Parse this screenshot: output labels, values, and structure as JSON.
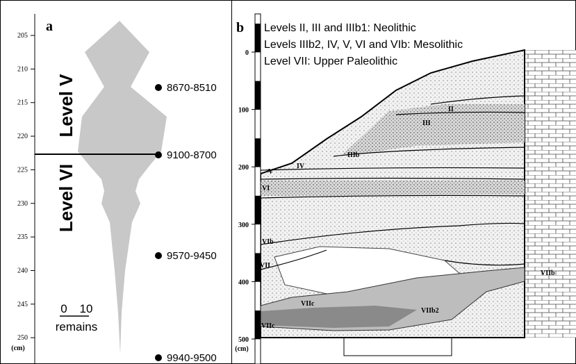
{
  "panel_a": {
    "label": "a",
    "depth_ticks": [
      205,
      210,
      215,
      220,
      225,
      230,
      235,
      240,
      245,
      250
    ],
    "depth_unit": "(cm)",
    "levels": [
      "Level V",
      "Level VI"
    ],
    "dates": [
      "8670-8510",
      "9100-8700",
      "9570-9450",
      "9940-9500"
    ],
    "scale": {
      "min": 0,
      "max": 10,
      "label": "remains"
    }
  },
  "panel_b": {
    "label": "b",
    "legend": [
      "Levels II, III and IIIb1: Neolithic",
      "Levels IIIb2, IV, V, VI and VIb: Mesolithic",
      "Level VII: Upper Paleolithic"
    ],
    "depth_ticks": [
      0,
      100,
      200,
      300,
      400,
      500
    ],
    "depth_unit": "(cm)",
    "layers": [
      "II",
      "III",
      "IIIb",
      "IV",
      "V",
      "VI",
      "VIb",
      "VII",
      "VIIc",
      "VIIb2",
      "VIIc",
      "VIIb"
    ]
  }
}
